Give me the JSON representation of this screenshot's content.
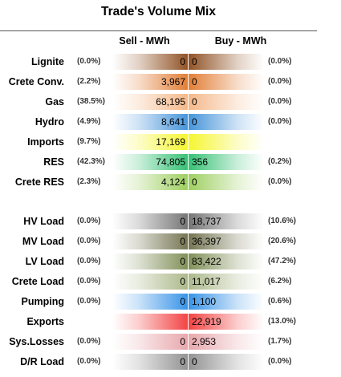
{
  "title": "Trade's Volume Mix",
  "columns": {
    "sell": "Sell - MWh",
    "buy": "Buy - MWh"
  },
  "chart_data": {
    "type": "table",
    "title": "Trade's Volume Mix",
    "rows": [
      {
        "label": "Lignite",
        "sell_pct": "(0.0%)",
        "sell": "0",
        "buy": "0",
        "buy_pct": "(0.0%)",
        "color": "#8B4A1A"
      },
      {
        "label": "Crete Conv.",
        "sell_pct": "(2.2%)",
        "sell": "3,967",
        "buy": "0",
        "buy_pct": "(0.0%)",
        "color": "#E0782C"
      },
      {
        "label": "Gas",
        "sell_pct": "(38.5%)",
        "sell": "68,195",
        "buy": "0",
        "buy_pct": "(0.0%)",
        "color": "#F4B584"
      },
      {
        "label": "Hydro",
        "sell_pct": "(4.9%)",
        "sell": "8,641",
        "buy": "0",
        "buy_pct": "(0.0%)",
        "color": "#3D8FD8"
      },
      {
        "label": "Imports",
        "sell_pct": "(9.7%)",
        "sell": "17,169",
        "buy": "",
        "buy_pct": "",
        "color": "#F5F527"
      },
      {
        "label": "RES",
        "sell_pct": "(42.3%)",
        "sell": "74,805",
        "buy": "356",
        "buy_pct": "(0.2%)",
        "color": "#2DBE6E"
      },
      {
        "label": "Crete RES",
        "sell_pct": "(2.3%)",
        "sell": "4,124",
        "buy": "0",
        "buy_pct": "(0.0%)",
        "color": "#9ACD5A"
      },
      {
        "label": "HV Load",
        "sell_pct": "(0.0%)",
        "sell": "0",
        "buy": "18,737",
        "buy_pct": "(10.6%)",
        "color": "#6E6E6E"
      },
      {
        "label": "MV Load",
        "sell_pct": "(0.0%)",
        "sell": "0",
        "buy": "36,397",
        "buy_pct": "(20.6%)",
        "color": "#6E6E4A"
      },
      {
        "label": "LV Load",
        "sell_pct": "(0.0%)",
        "sell": "0",
        "buy": "83,422",
        "buy_pct": "(47.2%)",
        "color": "#7A8A50"
      },
      {
        "label": "Crete Load",
        "sell_pct": "(0.0%)",
        "sell": "0",
        "buy": "11,017",
        "buy_pct": "(6.2%)",
        "color": "#A8B585"
      },
      {
        "label": "Pumping",
        "sell_pct": "(0.0%)",
        "sell": "0",
        "buy": "1,100",
        "buy_pct": "(0.6%)",
        "color": "#2E8EE6"
      },
      {
        "label": "Exports",
        "sell_pct": "",
        "sell": "",
        "buy": "22,919",
        "buy_pct": "(13.0%)",
        "color": "#F23A3A"
      },
      {
        "label": "Sys.Losses",
        "sell_pct": "(0.0%)",
        "sell": "0",
        "buy": "2,953",
        "buy_pct": "(1.7%)",
        "color": "#E6A3A8"
      },
      {
        "label": "D/R Load",
        "sell_pct": "(0.0%)",
        "sell": "0",
        "buy": "0",
        "buy_pct": "(0.0%)",
        "color": "#8E8E8E"
      }
    ]
  }
}
